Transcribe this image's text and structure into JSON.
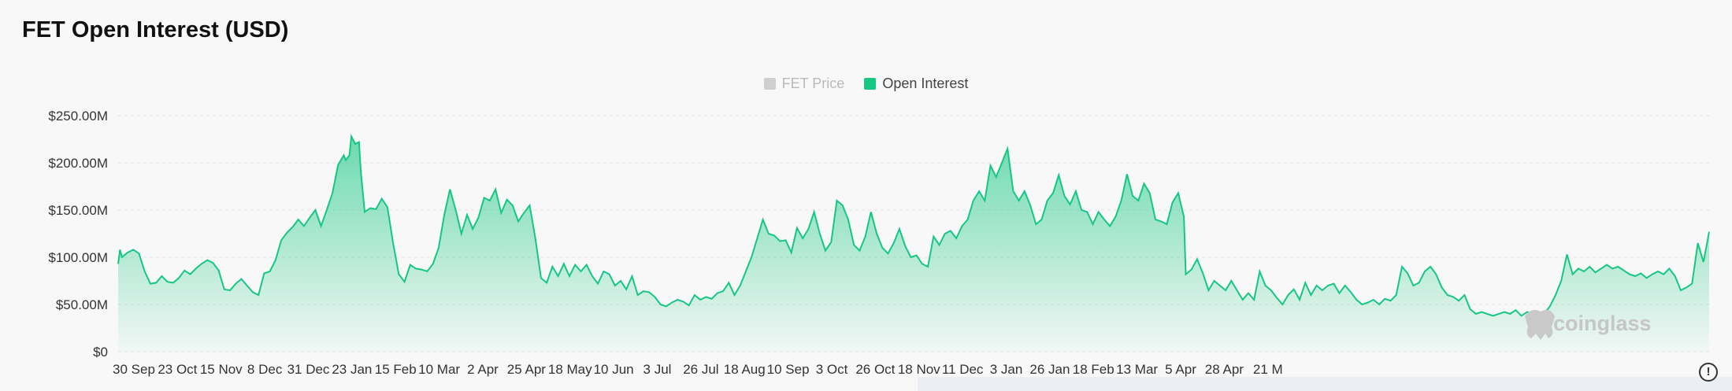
{
  "title": "FET Open Interest (USD)",
  "legend": {
    "price_label": "FET Price",
    "oi_label": "Open Interest",
    "oi_color": "#16c784",
    "price_color_disabled": "#cfcfcf"
  },
  "watermark": "coinglass",
  "info_icon": "info-icon",
  "chart_data": {
    "type": "area",
    "title": "FET Open Interest (USD)",
    "series": [
      {
        "name": "Open Interest",
        "color": "#16c784",
        "points": [
          [
            0,
            93
          ],
          [
            1,
            108
          ],
          [
            2,
            100
          ],
          [
            5,
            105
          ],
          [
            8,
            108
          ],
          [
            11,
            104
          ],
          [
            14,
            85
          ],
          [
            17,
            72
          ],
          [
            20,
            73
          ],
          [
            23,
            80
          ],
          [
            26,
            74
          ],
          [
            29,
            73
          ],
          [
            32,
            78
          ],
          [
            35,
            86
          ],
          [
            38,
            82
          ],
          [
            41,
            88
          ],
          [
            44,
            93
          ],
          [
            47,
            97
          ],
          [
            50,
            94
          ],
          [
            53,
            86
          ],
          [
            56,
            66
          ],
          [
            59,
            65
          ],
          [
            62,
            72
          ],
          [
            65,
            77
          ],
          [
            68,
            70
          ],
          [
            71,
            63
          ],
          [
            74,
            60
          ],
          [
            77,
            83
          ],
          [
            80,
            85
          ],
          [
            83,
            97
          ],
          [
            86,
            118
          ],
          [
            89,
            126
          ],
          [
            92,
            132
          ],
          [
            95,
            140
          ],
          [
            98,
            133
          ],
          [
            101,
            142
          ],
          [
            104,
            150
          ],
          [
            107,
            133
          ],
          [
            110,
            150
          ],
          [
            113,
            168
          ],
          [
            116,
            198
          ],
          [
            119,
            208
          ],
          [
            120,
            203
          ],
          [
            122,
            208
          ],
          [
            123,
            228
          ],
          [
            125,
            220
          ],
          [
            127,
            222
          ],
          [
            128,
            190
          ],
          [
            130,
            148
          ],
          [
            133,
            152
          ],
          [
            136,
            151
          ],
          [
            139,
            162
          ],
          [
            142,
            153
          ],
          [
            145,
            115
          ],
          [
            148,
            82
          ],
          [
            151,
            74
          ],
          [
            154,
            92
          ],
          [
            157,
            88
          ],
          [
            160,
            87
          ],
          [
            163,
            85
          ],
          [
            166,
            93
          ],
          [
            169,
            110
          ],
          [
            172,
            145
          ],
          [
            175,
            172
          ],
          [
            178,
            150
          ],
          [
            181,
            125
          ],
          [
            184,
            145
          ],
          [
            187,
            130
          ],
          [
            190,
            142
          ],
          [
            193,
            163
          ],
          [
            196,
            160
          ],
          [
            199,
            172
          ],
          [
            202,
            147
          ],
          [
            205,
            161
          ],
          [
            208,
            155
          ],
          [
            211,
            138
          ],
          [
            214,
            147
          ],
          [
            217,
            155
          ],
          [
            220,
            120
          ],
          [
            223,
            78
          ],
          [
            226,
            73
          ],
          [
            229,
            90
          ],
          [
            232,
            80
          ],
          [
            235,
            93
          ],
          [
            238,
            80
          ],
          [
            241,
            92
          ],
          [
            244,
            85
          ],
          [
            247,
            92
          ],
          [
            250,
            80
          ],
          [
            253,
            72
          ],
          [
            256,
            85
          ],
          [
            259,
            82
          ],
          [
            262,
            70
          ],
          [
            265,
            75
          ],
          [
            268,
            66
          ],
          [
            271,
            80
          ],
          [
            274,
            60
          ],
          [
            277,
            64
          ],
          [
            280,
            63
          ],
          [
            283,
            58
          ],
          [
            286,
            50
          ],
          [
            289,
            48
          ],
          [
            292,
            52
          ],
          [
            295,
            55
          ],
          [
            298,
            53
          ],
          [
            301,
            49
          ],
          [
            304,
            60
          ],
          [
            307,
            55
          ],
          [
            310,
            58
          ],
          [
            313,
            56
          ],
          [
            316,
            62
          ],
          [
            319,
            64
          ],
          [
            322,
            73
          ],
          [
            325,
            60
          ],
          [
            328,
            70
          ],
          [
            331,
            85
          ],
          [
            334,
            100
          ],
          [
            337,
            120
          ],
          [
            340,
            140
          ],
          [
            343,
            125
          ],
          [
            346,
            123
          ],
          [
            349,
            117
          ],
          [
            352,
            118
          ],
          [
            355,
            105
          ],
          [
            358,
            131
          ],
          [
            361,
            120
          ],
          [
            364,
            130
          ],
          [
            367,
            148
          ],
          [
            370,
            125
          ],
          [
            373,
            107
          ],
          [
            376,
            116
          ],
          [
            379,
            160
          ],
          [
            382,
            155
          ],
          [
            385,
            140
          ],
          [
            388,
            113
          ],
          [
            391,
            107
          ],
          [
            394,
            122
          ],
          [
            397,
            148
          ],
          [
            400,
            125
          ],
          [
            403,
            110
          ],
          [
            406,
            104
          ],
          [
            409,
            115
          ],
          [
            412,
            130
          ],
          [
            415,
            112
          ],
          [
            418,
            100
          ],
          [
            421,
            102
          ],
          [
            424,
            93
          ],
          [
            427,
            90
          ],
          [
            430,
            122
          ],
          [
            433,
            113
          ],
          [
            436,
            125
          ],
          [
            439,
            128
          ],
          [
            442,
            120
          ],
          [
            445,
            133
          ],
          [
            448,
            140
          ],
          [
            451,
            160
          ],
          [
            454,
            170
          ],
          [
            457,
            160
          ],
          [
            460,
            197
          ],
          [
            463,
            185
          ],
          [
            466,
            200
          ],
          [
            469,
            215
          ],
          [
            472,
            170
          ],
          [
            475,
            160
          ],
          [
            478,
            170
          ],
          [
            481,
            155
          ],
          [
            484,
            135
          ],
          [
            487,
            140
          ],
          [
            490,
            160
          ],
          [
            493,
            168
          ],
          [
            496,
            187
          ],
          [
            499,
            165
          ],
          [
            502,
            156
          ],
          [
            505,
            170
          ],
          [
            508,
            150
          ],
          [
            511,
            148
          ],
          [
            514,
            135
          ],
          [
            517,
            148
          ],
          [
            520,
            140
          ],
          [
            523,
            133
          ],
          [
            526,
            143
          ],
          [
            529,
            160
          ],
          [
            532,
            188
          ],
          [
            535,
            165
          ],
          [
            538,
            160
          ],
          [
            541,
            178
          ],
          [
            544,
            168
          ],
          [
            547,
            140
          ],
          [
            550,
            138
          ],
          [
            553,
            135
          ],
          [
            556,
            158
          ],
          [
            559,
            168
          ],
          [
            562,
            143
          ],
          [
            563,
            82
          ],
          [
            566,
            87
          ],
          [
            569,
            98
          ],
          [
            572,
            83
          ],
          [
            575,
            65
          ],
          [
            578,
            75
          ],
          [
            581,
            70
          ],
          [
            584,
            65
          ],
          [
            587,
            75
          ],
          [
            590,
            65
          ],
          [
            593,
            55
          ],
          [
            596,
            62
          ],
          [
            599,
            55
          ],
          [
            602,
            85
          ],
          [
            605,
            70
          ],
          [
            608,
            65
          ],
          [
            611,
            57
          ],
          [
            614,
            50
          ],
          [
            617,
            60
          ],
          [
            620,
            66
          ],
          [
            623,
            55
          ],
          [
            626,
            73
          ],
          [
            629,
            60
          ],
          [
            632,
            70
          ],
          [
            635,
            65
          ],
          [
            638,
            70
          ],
          [
            641,
            72
          ],
          [
            644,
            62
          ],
          [
            647,
            70
          ],
          [
            650,
            63
          ],
          [
            653,
            55
          ],
          [
            656,
            50
          ],
          [
            659,
            52
          ],
          [
            662,
            55
          ],
          [
            665,
            50
          ],
          [
            668,
            56
          ],
          [
            671,
            54
          ],
          [
            674,
            60
          ],
          [
            677,
            90
          ],
          [
            680,
            83
          ],
          [
            683,
            70
          ],
          [
            686,
            73
          ],
          [
            689,
            85
          ],
          [
            692,
            90
          ],
          [
            695,
            82
          ],
          [
            698,
            68
          ],
          [
            701,
            60
          ],
          [
            704,
            58
          ],
          [
            707,
            54
          ],
          [
            710,
            60
          ],
          [
            713,
            45
          ],
          [
            716,
            40
          ],
          [
            719,
            42
          ],
          [
            722,
            40
          ],
          [
            725,
            38
          ],
          [
            728,
            40
          ],
          [
            731,
            42
          ],
          [
            734,
            40
          ],
          [
            737,
            44
          ],
          [
            740,
            38
          ],
          [
            743,
            42
          ],
          [
            746,
            40
          ],
          [
            749,
            38
          ],
          [
            752,
            40
          ],
          [
            755,
            48
          ],
          [
            758,
            60
          ],
          [
            761,
            75
          ],
          [
            764,
            103
          ],
          [
            767,
            82
          ],
          [
            770,
            88
          ],
          [
            773,
            85
          ],
          [
            776,
            90
          ],
          [
            779,
            84
          ],
          [
            782,
            88
          ],
          [
            785,
            92
          ],
          [
            788,
            88
          ],
          [
            791,
            90
          ],
          [
            794,
            86
          ],
          [
            797,
            82
          ],
          [
            800,
            80
          ],
          [
            803,
            83
          ],
          [
            806,
            78
          ],
          [
            809,
            82
          ],
          [
            812,
            85
          ],
          [
            815,
            82
          ],
          [
            818,
            88
          ],
          [
            821,
            80
          ],
          [
            824,
            65
          ],
          [
            827,
            68
          ],
          [
            830,
            72
          ],
          [
            833,
            115
          ],
          [
            836,
            95
          ],
          [
            839,
            127
          ]
        ]
      }
    ],
    "x_start": "30 Sep",
    "x_ticks": [
      "30 Sep",
      "23 Oct",
      "15 Nov",
      "8 Dec",
      "31 Dec",
      "23 Jan",
      "15 Feb",
      "10 Mar",
      "2 Apr",
      "25 Apr",
      "18 May",
      "10 Jun",
      "3 Jul",
      "26 Jul",
      "18 Aug",
      "10 Sep",
      "3 Oct",
      "26 Oct",
      "18 Nov",
      "11 Dec",
      "3 Jan",
      "26 Jan",
      "18 Feb",
      "13 Mar",
      "5 Apr",
      "28 Apr",
      "21 M"
    ],
    "x_ticks_day_offset": [
      0,
      23,
      46,
      69,
      92,
      115,
      138,
      161,
      184,
      207,
      230,
      253,
      276,
      299,
      322,
      345,
      368,
      391,
      414,
      437,
      460,
      483,
      506,
      529,
      552,
      575,
      598
    ],
    "ylabel": "",
    "y_ticks": [
      "$0",
      "$50.00M",
      "$100.00M",
      "$150.00M",
      "$200.00M",
      "$250.00M"
    ],
    "y_tick_values": [
      0,
      50,
      100,
      150,
      200,
      250
    ],
    "y_unit": "USD millions",
    "ylim": [
      0,
      250
    ],
    "grid": true,
    "legend_position": "top-center"
  }
}
